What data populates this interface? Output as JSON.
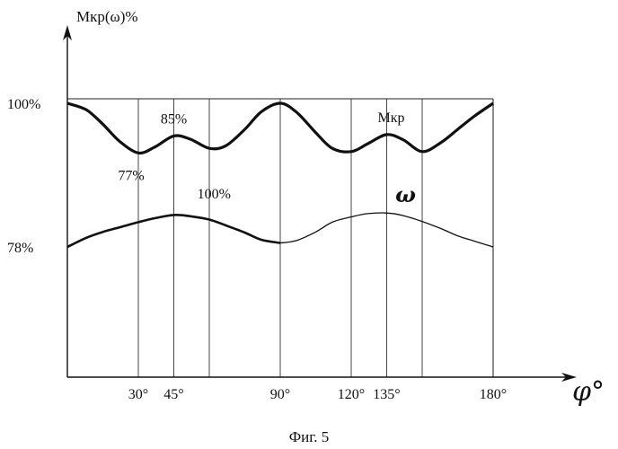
{
  "chart_data": {
    "type": "line",
    "title": "",
    "caption": "Фиг. 5",
    "ylabel": "Mкр(ω)%",
    "xlabel": "φ°",
    "xlim": [
      0,
      180
    ],
    "ylim": [
      70,
      104
    ],
    "x_ticks": [
      {
        "value": 30,
        "label": "30°"
      },
      {
        "value": 45,
        "label": "45°"
      },
      {
        "value": 90,
        "label": "90°"
      },
      {
        "value": 120,
        "label": "120°"
      },
      {
        "value": 135,
        "label": "135°"
      },
      {
        "value": 180,
        "label": "180°"
      }
    ],
    "grid_x": [
      30,
      45,
      60,
      90,
      120,
      135,
      150,
      180
    ],
    "y_ticks": [
      {
        "value": 100,
        "label": "100%"
      },
      {
        "value": 78,
        "label": "78%"
      }
    ],
    "series": [
      {
        "name": "Mкр",
        "x": [
          0,
          8,
          15,
          22,
          30,
          37,
          45,
          52,
          60,
          67,
          75,
          82,
          90,
          97,
          105,
          112,
          120,
          127,
          135,
          142,
          150,
          158,
          165,
          172,
          180
        ],
        "y": [
          100,
          99,
          96.8,
          94.2,
          92.4,
          93.3,
          95.0,
          94.5,
          93.1,
          93.5,
          96.0,
          98.7,
          100,
          98.6,
          95.5,
          93.1,
          92.6,
          93.8,
          95.2,
          94.4,
          92.6,
          94.0,
          96.0,
          98.0,
          100
        ]
      },
      {
        "name": "ω",
        "x": [
          0,
          8,
          15,
          22,
          30,
          37,
          45,
          52,
          60,
          67,
          75,
          82,
          90,
          97,
          105,
          112,
          120,
          127,
          135,
          142,
          150,
          158,
          165,
          172,
          180
        ],
        "y": [
          78.0,
          79.4,
          80.3,
          81.0,
          81.8,
          82.4,
          82.9,
          82.7,
          82.2,
          81.3,
          80.2,
          79.1,
          78.6,
          79.0,
          80.3,
          81.8,
          82.6,
          83.1,
          83.2,
          82.8,
          81.9,
          80.8,
          79.7,
          78.9,
          78.0
        ]
      }
    ],
    "annotations": [
      {
        "text": "100%",
        "x": 0,
        "y": 100,
        "align": "left-of-axis"
      },
      {
        "text": "85%",
        "x": 45,
        "y": 95.0,
        "align": "above"
      },
      {
        "text": "77%",
        "x": 30,
        "y": 92.4,
        "align": "below"
      },
      {
        "text": "100%",
        "x": 62,
        "y": 83.2,
        "align": "above"
      },
      {
        "text": "Mкр",
        "x": 135,
        "y": 95.2,
        "align": "above"
      },
      {
        "text": "ω",
        "x": 143,
        "y": 83.2,
        "align": "above"
      }
    ]
  }
}
